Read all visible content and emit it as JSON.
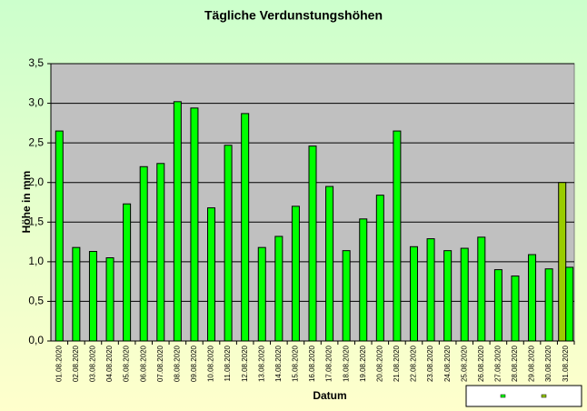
{
  "chart_data": {
    "type": "bar",
    "title": "Tägliche Verdunstungshöhen",
    "xlabel": "Datum",
    "ylabel": "Höhe in mm",
    "categories": [
      "01.08.2020",
      "02.08.2020",
      "03.08.2020",
      "04.08.2020",
      "05.08.2020",
      "06.08.2020",
      "07.08.2020",
      "08.08.2020",
      "09.08.2020",
      "10.08.2020",
      "11.08.2020",
      "12.08.2020",
      "13.08.2020",
      "14.08.2020",
      "15.08.2020",
      "16.08.2020",
      "17.08.2020",
      "18.08.2020",
      "19.08.2020",
      "20.08.2020",
      "21.08.2020",
      "22.08.2020",
      "23.08.2020",
      "24.08.2020",
      "25.08.2020",
      "26.08.2020",
      "27.08.2020",
      "28.08.2020",
      "29.08.2020",
      "30.08.2020",
      "31.08.2020"
    ],
    "series": [
      {
        "color": "#00ff00",
        "values": [
          2.65,
          1.18,
          1.13,
          1.05,
          1.73,
          2.2,
          2.24,
          3.02,
          2.94,
          1.68,
          2.47,
          2.87,
          1.18,
          1.32,
          1.7,
          2.46,
          1.95,
          1.14,
          1.54,
          1.84,
          2.65,
          1.19,
          1.29,
          1.14,
          1.17,
          1.31,
          0.9,
          0.82,
          1.09,
          0.91,
          0.93
        ]
      },
      {
        "color": "#99cc00",
        "values": [
          null,
          null,
          null,
          null,
          null,
          null,
          null,
          null,
          null,
          null,
          null,
          null,
          null,
          null,
          null,
          null,
          null,
          null,
          null,
          null,
          null,
          null,
          null,
          null,
          null,
          null,
          null,
          null,
          null,
          null,
          2.0
        ]
      }
    ],
    "ylim": [
      0,
      3.5
    ],
    "yticks": [
      {
        "value": 0,
        "label": "0,0"
      },
      {
        "value": 0.5,
        "label": "0,5"
      },
      {
        "value": 1,
        "label": "1,0"
      },
      {
        "value": 1.5,
        "label": "1,5"
      },
      {
        "value": 2,
        "label": "2,0"
      },
      {
        "value": 2.5,
        "label": "2,5"
      },
      {
        "value": 3,
        "label": "3,0"
      },
      {
        "value": 3.5,
        "label": "3,5"
      }
    ],
    "grid": true
  }
}
